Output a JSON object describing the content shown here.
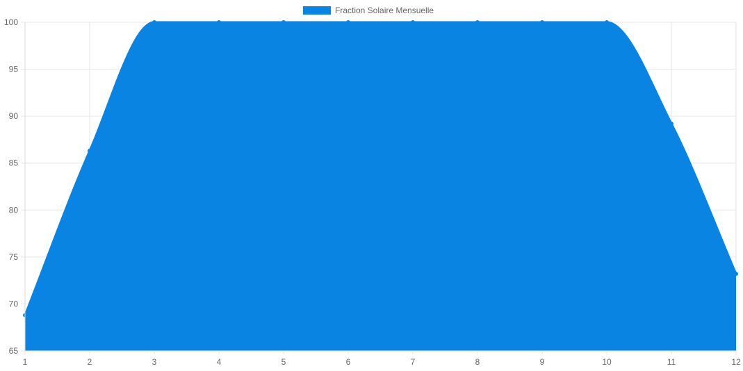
{
  "chart_data": {
    "type": "area",
    "x": [
      1,
      2,
      3,
      4,
      5,
      6,
      7,
      8,
      9,
      10,
      11,
      12
    ],
    "series": [
      {
        "name": "Fraction Solaire Mensuelle",
        "values": [
          68.8,
          86.3,
          100,
          100,
          100,
          100,
          100,
          100,
          100,
          100,
          89.2,
          73.2
        ]
      }
    ],
    "xlim": [
      1,
      12
    ],
    "ylim": [
      65,
      100
    ],
    "yticks": [
      65,
      70,
      75,
      80,
      85,
      90,
      95,
      100
    ],
    "xticks": [
      1,
      2,
      3,
      4,
      5,
      6,
      7,
      8,
      9,
      10,
      11,
      12
    ],
    "grid": true,
    "legend": "top-center",
    "colors": {
      "fill": "#0a84e2",
      "line": "#0a84e2",
      "point": "#0a84e2"
    }
  }
}
